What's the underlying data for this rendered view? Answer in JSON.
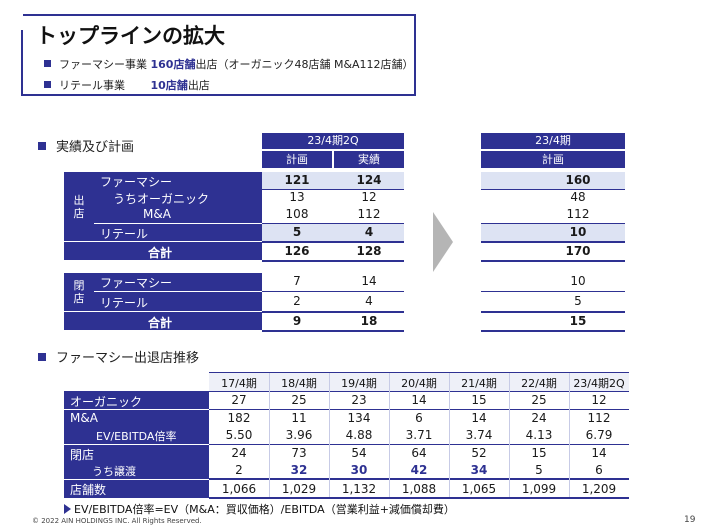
{
  "title": "トップラインの拡大",
  "bullets": [
    {
      "pre": "ファーマシー事業",
      "hl": "160店舗",
      "post": "出店（オーガニック48店舗 M&A112店舗）"
    },
    {
      "pre": "リテール事業",
      "hl": "10店舗",
      "post": "出店"
    }
  ],
  "section1": "実績及び計画",
  "section2": "ファーマシー出退店推移",
  "plan_table": {
    "period_left": "23/4期2Q",
    "period_right": "23/4期",
    "col_plan": "計画",
    "col_actual": "実績",
    "open_label": "出店",
    "close_label": "閉店",
    "open_rows": [
      {
        "label": "ファーマシー",
        "plan": "121",
        "actual": "124",
        "full": "160"
      },
      {
        "label": "うちオーガニック",
        "plan": "13",
        "actual": "12",
        "full": "48"
      },
      {
        "label": "M&A",
        "plan": "108",
        "actual": "112",
        "full": "112"
      },
      {
        "label": "リテール",
        "plan": "5",
        "actual": "4",
        "full": "10"
      }
    ],
    "open_total": {
      "label": "合計",
      "plan": "126",
      "actual": "128",
      "full": "170"
    },
    "close_rows": [
      {
        "label": "ファーマシー",
        "plan": "7",
        "actual": "14",
        "full": "10"
      },
      {
        "label": "リテール",
        "plan": "2",
        "actual": "4",
        "full": "5"
      }
    ],
    "close_total": {
      "label": "合計",
      "plan": "9",
      "actual": "18",
      "full": "15"
    }
  },
  "history_table": {
    "headers": [
      "17/4期",
      "18/4期",
      "19/4期",
      "20/4期",
      "21/4期",
      "22/4期",
      "23/4期2Q"
    ],
    "rows": [
      {
        "label": "オーガニック",
        "values": [
          "27",
          "25",
          "23",
          "14",
          "15",
          "25",
          "12"
        ]
      },
      {
        "label": "M&A",
        "values": [
          "182",
          "11",
          "134",
          "6",
          "14",
          "24",
          "112"
        ]
      },
      {
        "label": "EV/EBITDA倍率",
        "values": [
          "5.50",
          "3.96",
          "4.88",
          "3.71",
          "3.74",
          "4.13",
          "6.79"
        ]
      },
      {
        "label": "閉店",
        "values": [
          "24",
          "73",
          "54",
          "64",
          "52",
          "15",
          "14"
        ]
      },
      {
        "label": "うち譲渡",
        "values": [
          "2",
          "32",
          "30",
          "42",
          "34",
          "5",
          "6"
        ]
      },
      {
        "label": "店舗数",
        "values": [
          "1,066",
          "1,029",
          "1,132",
          "1,088",
          "1,065",
          "1,099",
          "1,209"
        ]
      }
    ]
  },
  "note": "EV/EBITDA倍率=EV（M&A：買収価格）/EBITDA（営業利益+減価償却費）",
  "copyright": "© 2022 AIN HOLDINGS INC. All Rights Reserved.",
  "page_number": "19"
}
